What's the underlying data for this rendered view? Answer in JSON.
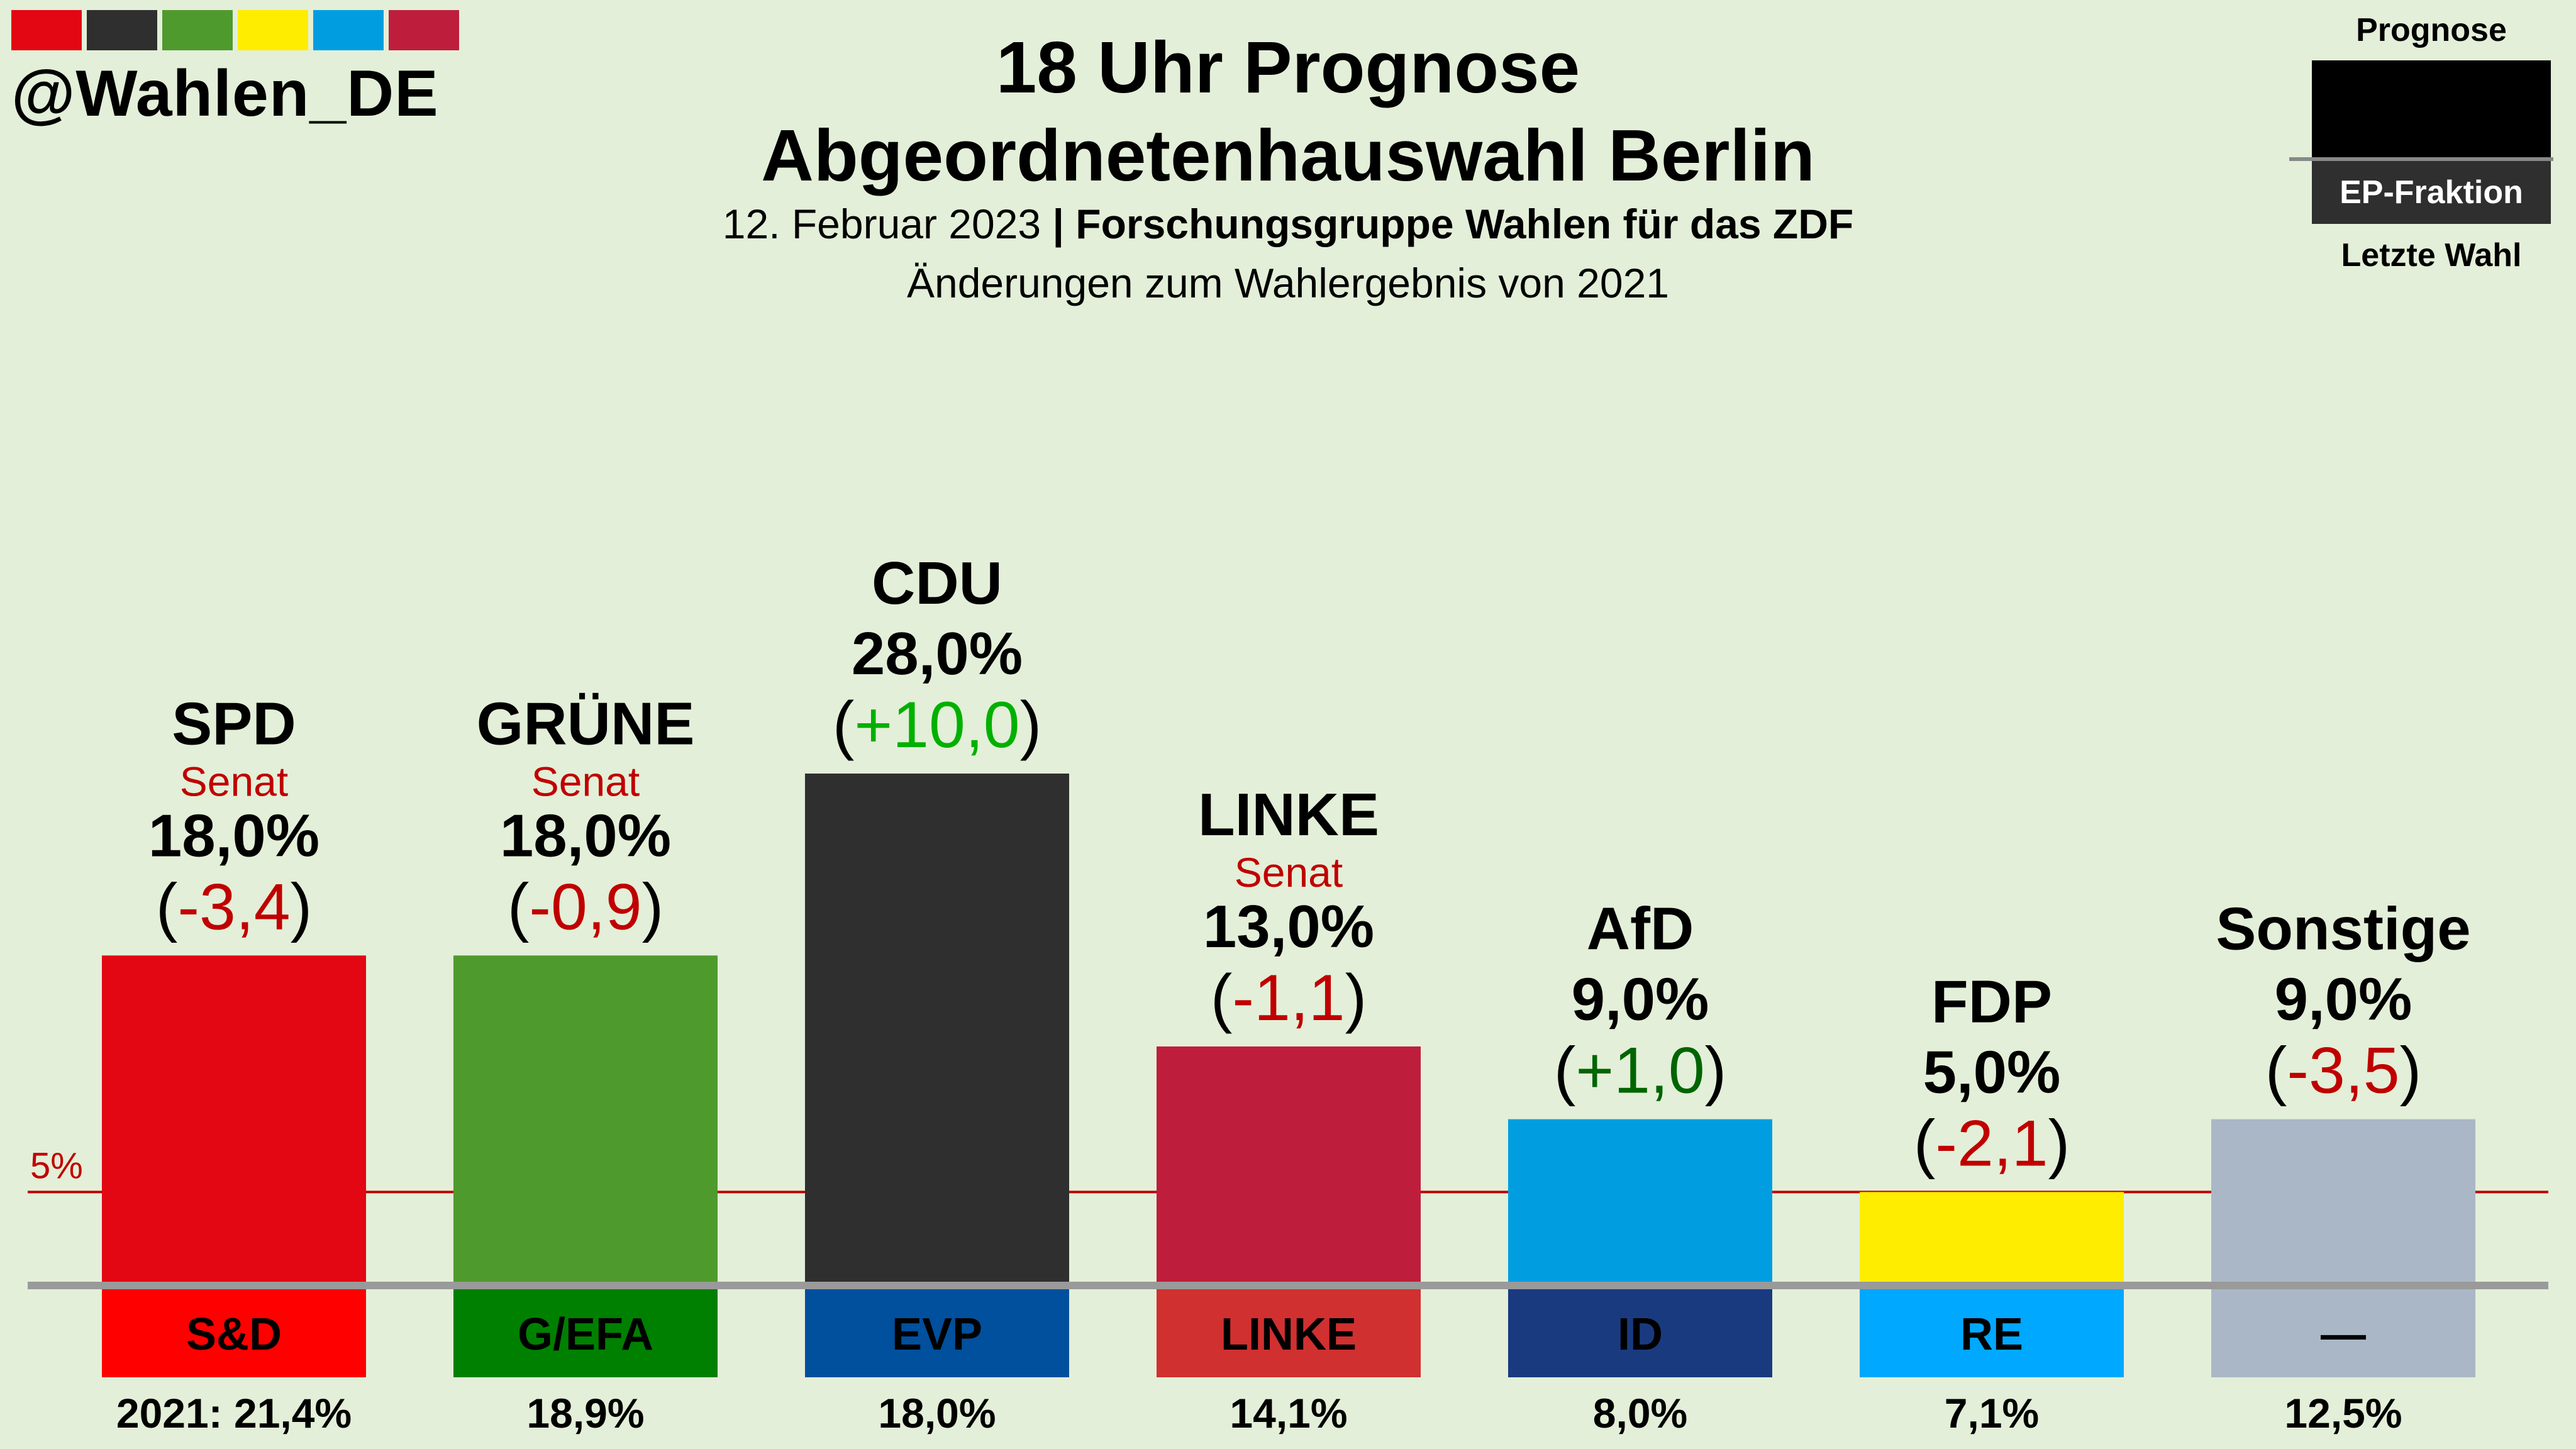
{
  "header": {
    "handle": "@Wahlen_DE",
    "title_line1": "18 Uhr Prognose",
    "title_line2": "Abgeordnetenhauswahl Berlin",
    "date": "12. Februar 2023",
    "separator": "|",
    "source": "Forschungsgruppe Wahlen für das ZDF",
    "subtitle": "Änderungen zum Wahlergebnis von 2021",
    "logo_colors": [
      "#e30613",
      "#2f2f2f",
      "#4f9a2d",
      "#ffed00",
      "#009ee0",
      "#be1e3c"
    ]
  },
  "legend": {
    "top_label": "Prognose",
    "band_label": "EP-Fraktion",
    "bottom_label": "Letzte Wahl"
  },
  "chart_data": {
    "type": "bar",
    "categories": [
      "SPD",
      "GRÜNE",
      "CDU",
      "LINKE",
      "AfD",
      "FDP",
      "Sonstige"
    ],
    "values": [
      18.0,
      18.0,
      28.0,
      13.0,
      9.0,
      5.0,
      9.0
    ],
    "value_labels": [
      "18,0%",
      "18,0%",
      "28,0%",
      "13,0%",
      "9,0%",
      "5,0%",
      "9,0%"
    ],
    "changes": [
      "-3,4",
      "-0,9",
      "+10,0",
      "-1,1",
      "+1,0",
      "-2,1",
      "-3,5"
    ],
    "change_colors": [
      "#c00000",
      "#c00000",
      "#00b000",
      "#c00000",
      "#006400",
      "#c00000",
      "#c00000"
    ],
    "senat_label": "Senat",
    "senat": [
      true,
      true,
      false,
      true,
      false,
      false,
      false
    ],
    "bar_colors": [
      "#e30613",
      "#4f9a2d",
      "#2f2f2f",
      "#be1e3c",
      "#009ee0",
      "#ffed00",
      "#aab7c6"
    ],
    "ep_groups": [
      "S&D",
      "G/EFA",
      "EVP",
      "LINKE",
      "ID",
      "RE",
      "—"
    ],
    "ep_colors": [
      "#ff0000",
      "#008000",
      "#00509e",
      "#d03030",
      "#1a3a80",
      "#00a8ff",
      "#aab7c6"
    ],
    "ep_text_colors": [
      "#000000",
      "#000000",
      "#000000",
      "#000000",
      "#000000",
      "#000000",
      "#000000"
    ],
    "previous": [
      "2021: 21,4%",
      "18,9%",
      "18,0%",
      "14,1%",
      "8,0%",
      "7,1%",
      "12,5%"
    ],
    "threshold": {
      "value": 5,
      "label": "5%",
      "color": "#c00000"
    },
    "ylim": [
      0,
      28
    ]
  }
}
